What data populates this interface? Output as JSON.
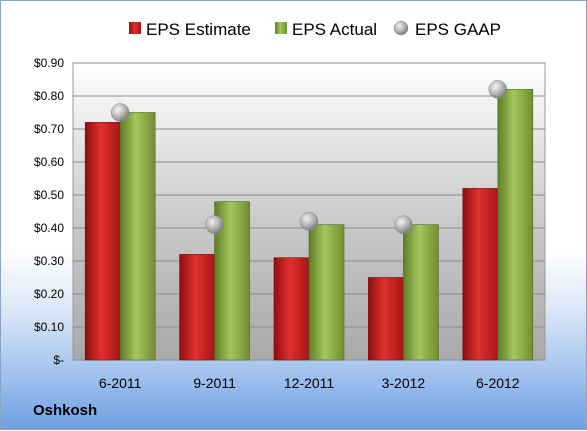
{
  "company": "Oshkosh",
  "colors": {
    "estimate": "#cc1f1f",
    "actual": "#8db145",
    "gaap": "#a8a8a8"
  },
  "chart_data": {
    "type": "bar",
    "categories": [
      "6-2011",
      "9-2011",
      "12-2011",
      "3-2012",
      "6-2012"
    ],
    "series": [
      {
        "name": "EPS Estimate",
        "values": [
          0.72,
          0.32,
          0.31,
          0.25,
          0.52
        ],
        "kind": "bar"
      },
      {
        "name": "EPS Actual",
        "values": [
          0.75,
          0.48,
          0.41,
          0.41,
          0.82
        ],
        "kind": "bar"
      },
      {
        "name": "EPS GAAP",
        "values": [
          0.75,
          0.41,
          0.42,
          0.41,
          0.82
        ],
        "kind": "marker"
      }
    ],
    "ylim": [
      0,
      0.9
    ],
    "yticks": [
      0,
      0.1,
      0.2,
      0.3,
      0.4,
      0.5,
      0.6,
      0.7,
      0.8,
      0.9
    ],
    "ytick_labels": [
      "$-",
      "$0.10",
      "$0.20",
      "$0.30",
      "$0.40",
      "$0.50",
      "$0.60",
      "$0.70",
      "$0.80",
      "$0.90"
    ],
    "grid": true,
    "legend": "top"
  }
}
